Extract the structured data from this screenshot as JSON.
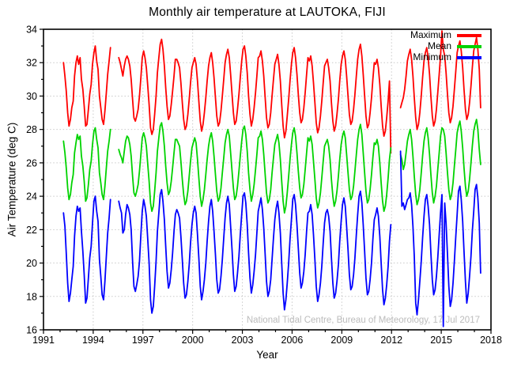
{
  "chart_data": {
    "type": "line",
    "title": "Monthly air temperature at LAUTOKA, FIJI",
    "xlabel": "Year",
    "ylabel": "Air Temperature (deg C)",
    "xlim": [
      1991,
      2018
    ],
    "ylim": [
      16,
      34
    ],
    "x_major_ticks": [
      1991,
      1994,
      1997,
      2000,
      2003,
      2006,
      2009,
      2012,
      2015,
      2018
    ],
    "x_minor_step": 1,
    "y_major_ticks": [
      16,
      18,
      20,
      22,
      24,
      26,
      28,
      30,
      32,
      34
    ],
    "y_minor_step": 1,
    "grid": "dotted",
    "grid_color": "#c9c9c9",
    "axis_color": "#000000",
    "legend_position": "top-right-inside",
    "watermark": "National Tidal Centre, Bureau of Meteorology, 17 Jul 2017",
    "watermark_color": "#bcbcbc",
    "start_year": 1992,
    "series": [
      {
        "name": "Maximum",
        "color": "#ff0000",
        "values": [
          [
            null,
            null,
            32.0,
            31.2,
            30.3,
            29.0,
            28.2,
            28.6,
            29.3,
            29.7,
            31.2,
            32.0
          ],
          [
            32.4,
            31.9,
            32.3,
            31.0,
            30.4,
            29.4,
            28.2,
            28.3,
            29.2,
            30.1,
            30.7,
            31.9
          ],
          [
            32.6,
            33.0,
            32.1,
            31.6,
            30.0,
            29.3,
            28.6,
            28.3,
            29.1,
            30.2,
            31.3,
            32.1
          ],
          [
            32.9,
            null,
            null,
            null,
            null,
            null,
            32.3,
            32.0,
            31.6,
            31.2,
            31.8,
            32.2
          ],
          [
            32.4,
            32.2,
            31.8,
            31.0,
            29.8,
            28.7,
            28.5,
            28.8,
            29.2,
            30.0,
            31.1,
            32.3
          ],
          [
            32.7,
            32.3,
            31.7,
            30.6,
            29.5,
            28.1,
            27.7,
            28.0,
            28.9,
            30.0,
            31.4,
            32.3
          ],
          [
            33.1,
            33.4,
            32.8,
            31.8,
            30.5,
            29.4,
            28.6,
            28.8,
            29.5,
            30.3,
            31.2,
            32.2
          ],
          [
            32.2,
            32.0,
            31.7,
            30.8,
            29.6,
            28.6,
            28.0,
            28.2,
            28.9,
            29.8,
            30.8,
            31.7
          ],
          [
            32.0,
            32.3,
            31.9,
            30.9,
            29.7,
            28.5,
            27.9,
            28.3,
            29.0,
            29.9,
            30.9,
            31.8
          ],
          [
            32.3,
            32.6,
            32.0,
            31.1,
            29.9,
            28.8,
            28.2,
            28.4,
            29.1,
            30.0,
            31.0,
            32.0
          ],
          [
            32.5,
            32.8,
            32.3,
            31.3,
            30.1,
            29.0,
            28.3,
            28.5,
            29.2,
            30.1,
            31.1,
            32.1
          ],
          [
            32.8,
            33.0,
            32.4,
            31.4,
            30.0,
            28.9,
            28.2,
            28.6,
            29.3,
            30.2,
            31.2,
            32.3
          ],
          [
            32.4,
            32.7,
            32.1,
            31.2,
            29.9,
            28.7,
            28.1,
            28.3,
            29.0,
            30.0,
            31.0,
            31.9
          ],
          [
            32.2,
            32.5,
            31.9,
            30.9,
            29.5,
            28.2,
            27.5,
            27.9,
            28.8,
            29.8,
            30.9,
            31.9
          ],
          [
            32.6,
            32.9,
            32.3,
            31.3,
            30.1,
            29.0,
            28.4,
            28.6,
            29.3,
            30.2,
            31.3,
            32.3
          ],
          [
            32.1,
            32.4,
            31.8,
            30.8,
            29.6,
            28.4,
            27.8,
            28.1,
            28.8,
            29.7,
            30.8,
            31.8
          ],
          [
            32.0,
            32.2,
            31.7,
            30.9,
            29.6,
            28.5,
            27.9,
            28.2,
            28.9,
            29.8,
            30.9,
            31.9
          ],
          [
            32.4,
            32.7,
            32.2,
            31.2,
            30.0,
            28.9,
            28.3,
            28.5,
            29.2,
            30.1,
            31.2,
            32.2
          ],
          [
            32.8,
            33.1,
            32.4,
            31.3,
            30.0,
            28.8,
            28.1,
            28.3,
            29.0,
            29.9,
            31.0,
            32.0
          ],
          [
            31.9,
            32.2,
            31.7,
            30.7,
            29.4,
            28.2,
            27.6,
            27.9,
            28.7,
            29.7,
            30.9,
            26.6
          ],
          [
            null,
            null,
            null,
            null,
            null,
            null,
            29.3,
            29.6,
            29.9,
            30.4,
            31.2,
            32.1
          ],
          [
            32.5,
            32.8,
            32.2,
            31.2,
            29.9,
            28.7,
            28.0,
            28.3,
            29.0,
            30.0,
            31.1,
            32.1
          ],
          [
            32.6,
            32.9,
            32.3,
            31.3,
            30.0,
            28.8,
            28.2,
            28.5,
            29.2,
            30.2,
            31.3,
            32.4
          ],
          [
            33.9,
            32.8,
            32.4,
            31.4,
            30.1,
            29.0,
            28.4,
            28.7,
            29.4,
            30.4,
            31.5,
            32.6
          ],
          [
            33.0,
            33.3,
            32.7,
            31.7,
            30.4,
            29.2,
            28.6,
            28.9,
            29.6,
            30.6,
            31.7,
            32.7
          ],
          [
            33.1,
            33.5,
            32.8,
            31.6,
            29.3,
            null,
            null,
            null,
            null,
            null,
            null,
            null
          ]
        ]
      },
      {
        "name": "Mean",
        "color": "#00d300",
        "values": [
          [
            null,
            null,
            27.3,
            26.6,
            25.7,
            24.5,
            23.8,
            24.1,
            24.8,
            25.3,
            26.6,
            27.2
          ],
          [
            27.7,
            27.4,
            27.6,
            26.4,
            25.8,
            24.9,
            23.7,
            23.9,
            24.7,
            25.6,
            26.1,
            27.1
          ],
          [
            27.9,
            28.1,
            27.4,
            26.9,
            25.4,
            24.8,
            24.1,
            23.8,
            24.6,
            25.7,
            26.7,
            27.3
          ],
          [
            28.0,
            null,
            null,
            null,
            null,
            null,
            26.8,
            26.5,
            26.3,
            26.0,
            26.7,
            27.3
          ],
          [
            27.6,
            27.5,
            27.1,
            26.4,
            25.2,
            24.2,
            24.0,
            24.3,
            24.7,
            25.5,
            26.5,
            27.5
          ],
          [
            27.8,
            27.5,
            27.0,
            25.9,
            24.9,
            23.6,
            23.1,
            23.4,
            24.3,
            25.4,
            26.7,
            27.5
          ],
          [
            28.2,
            28.4,
            27.9,
            27.0,
            25.8,
            24.8,
            24.1,
            24.3,
            24.9,
            25.7,
            26.6,
            27.4
          ],
          [
            27.4,
            27.2,
            27.0,
            26.1,
            25.0,
            24.1,
            23.5,
            23.7,
            24.3,
            25.2,
            26.1,
            26.9
          ],
          [
            27.2,
            27.5,
            27.2,
            26.2,
            25.1,
            24.0,
            23.4,
            23.8,
            24.4,
            25.3,
            26.2,
            27.0
          ],
          [
            27.5,
            27.8,
            27.3,
            26.4,
            25.3,
            24.3,
            23.7,
            23.9,
            24.5,
            25.4,
            26.3,
            27.2
          ],
          [
            27.7,
            28.0,
            27.6,
            26.6,
            25.5,
            24.5,
            23.8,
            24.0,
            24.6,
            25.5,
            26.4,
            27.3
          ],
          [
            28.0,
            28.2,
            27.7,
            26.7,
            25.4,
            24.4,
            23.7,
            24.1,
            24.7,
            25.6,
            26.5,
            27.5
          ],
          [
            27.6,
            27.9,
            27.4,
            26.5,
            25.3,
            24.2,
            23.6,
            23.8,
            24.4,
            25.4,
            26.3,
            27.1
          ],
          [
            27.4,
            27.7,
            27.2,
            26.2,
            24.9,
            23.7,
            23.0,
            23.4,
            24.2,
            25.2,
            26.2,
            27.1
          ],
          [
            27.8,
            28.1,
            27.6,
            26.6,
            25.5,
            24.5,
            23.9,
            24.1,
            24.7,
            25.6,
            26.6,
            27.5
          ],
          [
            27.3,
            27.6,
            27.1,
            26.1,
            25.0,
            23.9,
            23.3,
            23.6,
            24.2,
            25.1,
            26.1,
            27.0
          ],
          [
            27.2,
            27.4,
            27.0,
            26.2,
            25.0,
            24.0,
            23.4,
            23.7,
            24.3,
            25.2,
            26.2,
            27.1
          ],
          [
            27.6,
            27.9,
            27.5,
            26.5,
            25.4,
            24.4,
            23.8,
            24.0,
            24.6,
            25.5,
            26.5,
            27.4
          ],
          [
            28.0,
            28.3,
            27.7,
            26.6,
            25.4,
            24.3,
            23.6,
            23.8,
            24.4,
            25.3,
            26.3,
            27.2
          ],
          [
            27.1,
            27.4,
            27.0,
            26.0,
            24.8,
            23.7,
            23.1,
            23.4,
            24.1,
            25.1,
            26.2,
            26.9
          ],
          [
            null,
            null,
            null,
            null,
            null,
            null,
            26.5,
            26.2,
            25.6,
            25.9,
            26.6,
            27.3
          ],
          [
            27.7,
            28.0,
            27.4,
            26.4,
            25.2,
            24.1,
            23.5,
            23.8,
            24.4,
            25.4,
            26.4,
            27.3
          ],
          [
            27.8,
            28.1,
            27.5,
            26.5,
            25.3,
            24.2,
            23.6,
            24.0,
            24.6,
            25.6,
            26.6,
            27.6
          ],
          [
            28.1,
            28.0,
            27.6,
            26.6,
            25.4,
            24.4,
            23.8,
            24.1,
            24.8,
            25.8,
            26.8,
            27.8
          ],
          [
            28.2,
            28.5,
            27.9,
            26.9,
            25.7,
            24.6,
            24.0,
            24.3,
            25.0,
            26.0,
            27.0,
            27.9
          ],
          [
            28.3,
            28.6,
            28.0,
            26.8,
            25.9,
            null,
            null,
            null,
            null,
            null,
            null,
            null
          ]
        ]
      },
      {
        "name": "Minimum",
        "color": "#0000ff",
        "values": [
          [
            null,
            null,
            23.0,
            22.2,
            20.6,
            18.8,
            17.7,
            18.2,
            19.0,
            19.8,
            21.6,
            22.8
          ],
          [
            23.4,
            23.1,
            23.3,
            21.9,
            20.7,
            19.3,
            17.6,
            17.9,
            19.1,
            20.3,
            21.0,
            22.4
          ],
          [
            23.7,
            24.0,
            23.1,
            22.5,
            20.2,
            19.2,
            18.1,
            17.8,
            18.9,
            20.4,
            21.8,
            22.7
          ],
          [
            23.8,
            null,
            null,
            null,
            null,
            null,
            23.7,
            23.3,
            23.0,
            21.8,
            22.0,
            22.9
          ],
          [
            23.5,
            23.3,
            22.9,
            22.0,
            20.1,
            18.6,
            18.3,
            18.7,
            19.2,
            20.1,
            21.7,
            23.1
          ],
          [
            23.8,
            23.4,
            22.8,
            21.4,
            20.0,
            17.8,
            17.0,
            17.4,
            18.6,
            20.1,
            21.9,
            23.0
          ],
          [
            24.1,
            24.4,
            23.7,
            22.6,
            21.0,
            19.5,
            18.5,
            18.8,
            19.6,
            20.6,
            21.9,
            22.9
          ],
          [
            23.2,
            23.0,
            22.7,
            21.6,
            20.2,
            18.8,
            17.9,
            18.1,
            18.9,
            19.9,
            21.2,
            22.3
          ],
          [
            23.0,
            23.4,
            23.0,
            21.7,
            20.3,
            18.6,
            17.8,
            18.3,
            19.0,
            20.0,
            21.3,
            22.5
          ],
          [
            23.4,
            23.8,
            23.1,
            21.9,
            20.5,
            19.0,
            18.2,
            18.4,
            19.2,
            20.2,
            21.5,
            22.7
          ],
          [
            23.6,
            24.0,
            23.5,
            22.2,
            20.8,
            19.3,
            18.3,
            18.6,
            19.4,
            20.4,
            21.7,
            22.9
          ],
          [
            24.0,
            24.2,
            23.6,
            22.3,
            20.6,
            19.1,
            18.2,
            18.7,
            19.5,
            20.5,
            21.8,
            23.1
          ],
          [
            23.5,
            23.9,
            23.2,
            22.1,
            20.5,
            18.9,
            18.0,
            18.3,
            19.0,
            20.2,
            21.5,
            22.6
          ],
          [
            23.3,
            23.7,
            23.0,
            21.8,
            20.0,
            18.2,
            17.2,
            17.8,
            18.8,
            20.0,
            21.4,
            22.6
          ],
          [
            23.8,
            24.1,
            23.5,
            22.3,
            20.9,
            19.4,
            18.5,
            18.8,
            19.5,
            20.5,
            21.9,
            23.0
          ],
          [
            23.1,
            23.5,
            22.9,
            21.7,
            20.2,
            18.6,
            17.7,
            18.1,
            18.8,
            19.8,
            21.2,
            22.4
          ],
          [
            23.0,
            23.2,
            22.8,
            21.9,
            20.3,
            18.8,
            17.9,
            18.2,
            18.9,
            19.9,
            21.3,
            22.5
          ],
          [
            23.5,
            23.9,
            23.4,
            22.2,
            20.8,
            19.3,
            18.4,
            18.6,
            19.3,
            20.3,
            21.7,
            22.9
          ],
          [
            24.0,
            24.3,
            23.6,
            22.3,
            20.7,
            19.1,
            18.1,
            18.3,
            19.0,
            20.0,
            21.4,
            22.6
          ],
          [
            22.9,
            23.3,
            22.8,
            21.6,
            20.0,
            18.4,
            17.5,
            17.9,
            18.7,
            19.8,
            21.3,
            22.3
          ],
          [
            null,
            null,
            null,
            null,
            null,
            null,
            26.7,
            23.4,
            23.6,
            23.2,
            23.5,
            23.8
          ],
          [
            23.9,
            24.2,
            23.5,
            22.2,
            20.4,
            17.6,
            16.9,
            17.8,
            18.9,
            20.1,
            21.5,
            22.8
          ],
          [
            23.8,
            24.1,
            23.4,
            22.3,
            20.6,
            19.0,
            18.1,
            18.4,
            19.2,
            20.3,
            21.7,
            23.0
          ],
          [
            24.1,
            16.2,
            23.6,
            22.4,
            20.5,
            18.6,
            17.4,
            17.8,
            18.8,
            20.1,
            21.6,
            22.9
          ],
          [
            24.3,
            24.6,
            23.8,
            22.5,
            20.7,
            18.9,
            17.6,
            18.2,
            19.2,
            20.4,
            21.9,
            23.1
          ],
          [
            24.4,
            24.7,
            23.9,
            22.4,
            19.4,
            null,
            null,
            null,
            null,
            null,
            null,
            null
          ]
        ]
      }
    ]
  }
}
